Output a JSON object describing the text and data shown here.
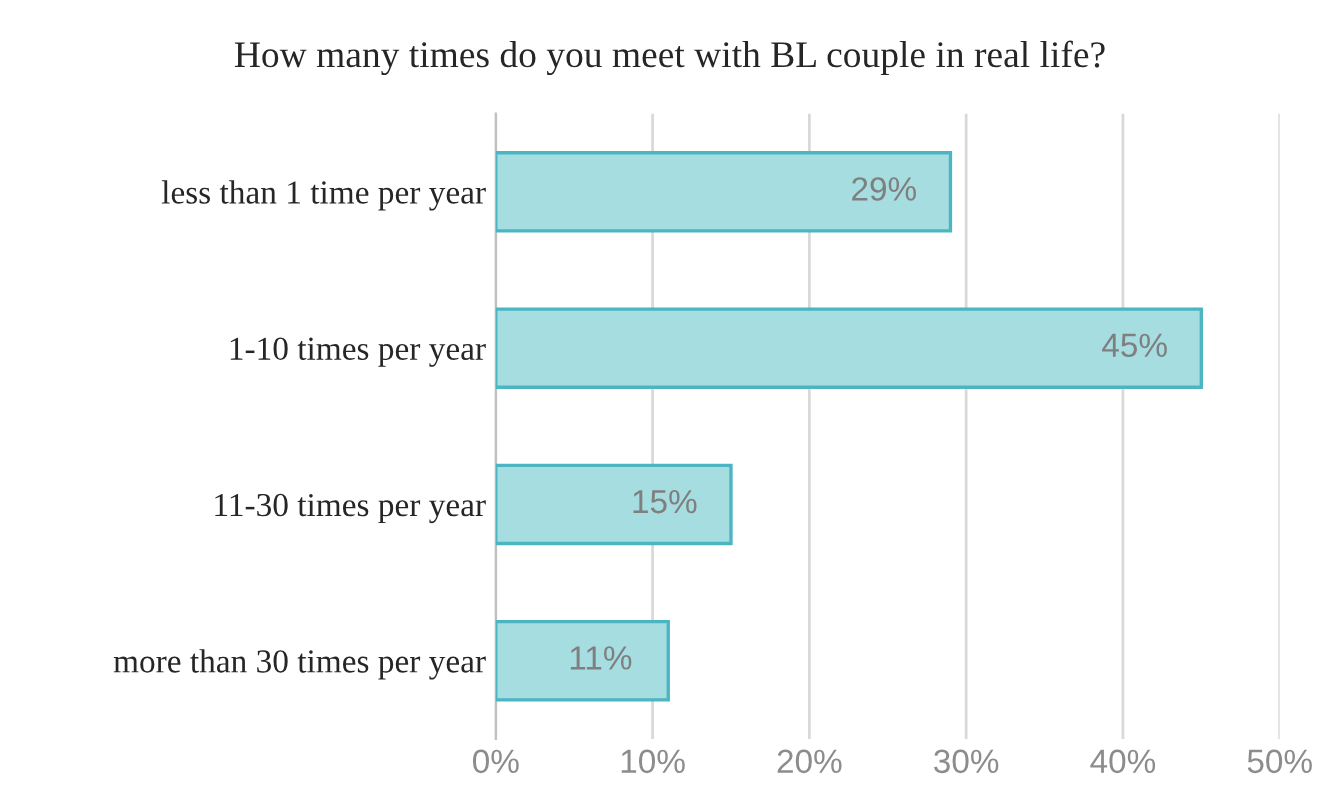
{
  "chart_data": {
    "type": "bar",
    "orientation": "horizontal",
    "title": "How many times do you meet with BL couple in real life?",
    "categories": [
      "less than 1 time per year",
      "1-10 times per year",
      "11-30 times per year",
      "more than 30 times per year"
    ],
    "values": [
      29,
      45,
      15,
      11
    ],
    "value_labels": [
      "29%",
      "45%",
      "15%",
      "11%"
    ],
    "color": "#a6dde0",
    "xlim": [
      0,
      50
    ],
    "xticks": [
      {
        "value": 0,
        "label": "0%"
      },
      {
        "value": 10,
        "label": "10%"
      },
      {
        "value": 20,
        "label": "20%"
      },
      {
        "value": 30,
        "label": "30%"
      },
      {
        "value": 40,
        "label": "40%"
      },
      {
        "value": 50,
        "label": "50%"
      }
    ],
    "grid": "x"
  }
}
